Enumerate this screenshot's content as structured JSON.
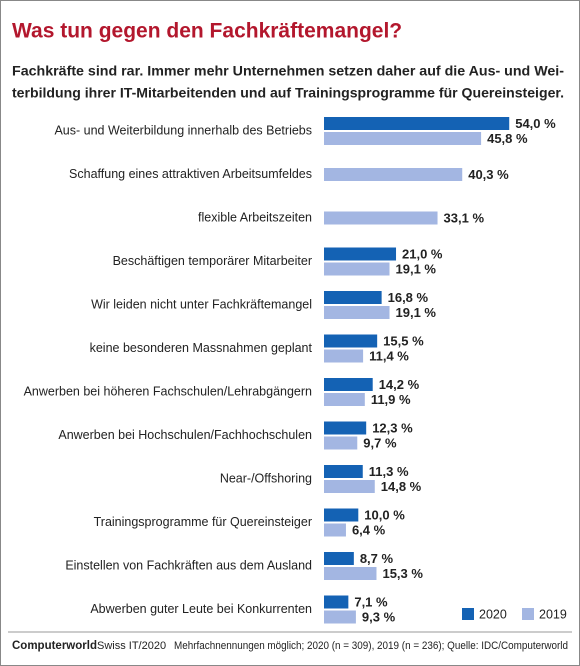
{
  "chart_data": {
    "type": "bar",
    "orientation": "horizontal",
    "title": "Was tun gegen den Fachkräftemangel?",
    "subtitle": [
      "Fachkräfte sind rar. Immer mehr Unternehmen setzen daher auf die Aus- und Wei-",
      "terbildung ihrer IT-Mitarbeitenden und auf Trainingsprogramme für Quereinsteiger."
    ],
    "categories": [
      "Aus- und Weiterbildung innerhalb des Betriebs",
      "Schaffung eines attraktiven Arbeitsumfeldes",
      "flexible Arbeitszeiten",
      "Beschäftigen temporärer Mitarbeiter",
      "Wir leiden nicht unter Fachkräftemangel",
      "keine besonderen Massnahmen geplant",
      "Anwerben bei höheren Fachschulen/Lehrabgängern",
      "Anwerben bei Hochschulen/Fachhochschulen",
      "Near-/Offshoring",
      "Trainingsprogramme für Quereinsteiger",
      "Einstellen von Fachkräften aus dem Ausland",
      "Abwerben guter Leute bei Konkurrenten"
    ],
    "series": [
      {
        "name": "2020",
        "color": "#1462b4",
        "values": [
          54.0,
          null,
          null,
          21.0,
          16.8,
          15.5,
          14.2,
          12.3,
          11.3,
          10.0,
          8.7,
          7.1
        ],
        "value_labels": [
          "54,0 %",
          null,
          null,
          "21,0 %",
          "16,8 %",
          "15,5 %",
          "14,2 %",
          "12,3 %",
          "11,3 %",
          "10,0 %",
          "8,7 %",
          "7,1 %"
        ]
      },
      {
        "name": "2019",
        "color": "#a3b6e2",
        "values": [
          45.8,
          40.3,
          33.1,
          19.1,
          19.1,
          11.4,
          11.9,
          9.7,
          14.8,
          6.4,
          15.3,
          9.3
        ],
        "value_labels": [
          "45,8 %",
          "40,3 %",
          "33,1 %",
          "19,1 %",
          "19,1 %",
          "11,4 %",
          "11,9 %",
          "9,7 %",
          "14,8 %",
          "6,4 %",
          "15,3 %",
          "9,3 %"
        ]
      }
    ],
    "legend": "bottom-right",
    "source": {
      "brand": "Computerworld",
      "issue": "Swiss IT/2020",
      "note": "Mehrfachnennungen möglich; 2020 (n = 309), 2019 (n = 236); Quelle: IDC/Computerworld"
    }
  }
}
